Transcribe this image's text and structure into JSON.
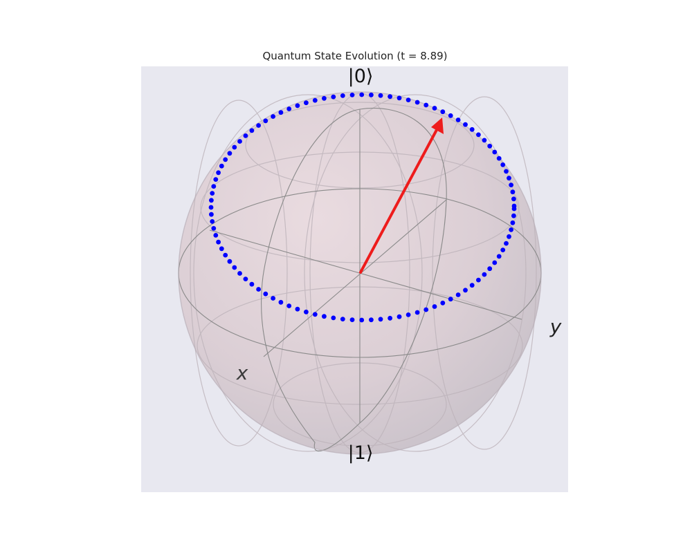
{
  "title": "Quantum State Evolution (t = 8.89)",
  "labels": {
    "north_pole": "|0⟩",
    "south_pole": "|1⟩",
    "x_axis": "x",
    "y_axis": "y"
  },
  "colors": {
    "panel_background": "#e8e8f0",
    "sphere_fill": "#e9d7dc",
    "wireframe": "#8a8a8a",
    "trajectory_points": "#0000ff",
    "state_vector": "#ee1c1c"
  },
  "trajectory": {
    "point_count": 101,
    "start_angle_deg": 0.7,
    "end_angle_deg": 359.3
  },
  "state_vector": {
    "description_label": ""
  }
}
